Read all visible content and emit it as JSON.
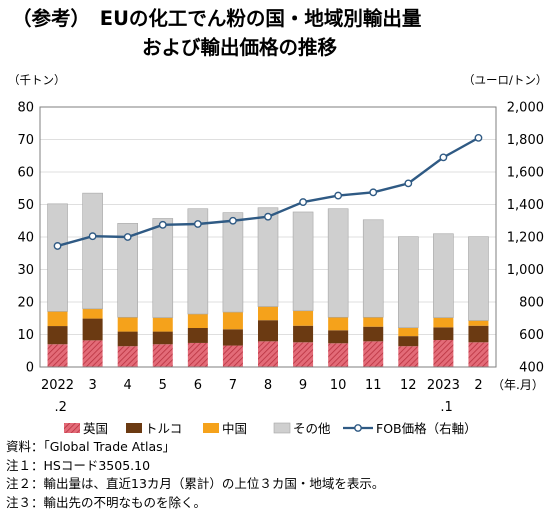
{
  "title": {
    "line1": "（参考）　EUの化工でん粉の国・地域別輸出量",
    "line2": "および輸出価格の推移"
  },
  "notes": [
    "資料：「Global Trade Atlas」",
    "注１：HSコード3505.10",
    "注２：輸出量は、直近13カ月（累計）の上位３カ国・地域を表示。",
    "注３：輸出先の不明なものを除く。"
  ],
  "chart_data": {
    "type": "bar",
    "stacked": true,
    "left_unit": "（千トン）",
    "right_unit": "（ユーロ/トン）",
    "x_unit": "（年.月）",
    "categories": [
      "2022.2",
      "3",
      "4",
      "5",
      "6",
      "7",
      "8",
      "9",
      "10",
      "11",
      "12",
      "2023.1",
      "2"
    ],
    "x_tick_labels": [
      {
        "line1": "2022",
        "line2": ".2"
      },
      {
        "line1": "3",
        "line2": ""
      },
      {
        "line1": "4",
        "line2": ""
      },
      {
        "line1": "5",
        "line2": ""
      },
      {
        "line1": "6",
        "line2": ""
      },
      {
        "line1": "7",
        "line2": ""
      },
      {
        "line1": "8",
        "line2": ""
      },
      {
        "line1": "9",
        "line2": ""
      },
      {
        "line1": "10",
        "line2": ""
      },
      {
        "line1": "11",
        "line2": ""
      },
      {
        "line1": "12",
        "line2": ""
      },
      {
        "line1": "2023",
        "line2": ".1"
      },
      {
        "line1": "2",
        "line2": ""
      }
    ],
    "y_left": {
      "min": 0,
      "max": 80,
      "step": 10
    },
    "y_right": {
      "min": 400,
      "max": 2000,
      "step": 200
    },
    "y_left_ticks": [
      "0",
      "10",
      "20",
      "30",
      "40",
      "50",
      "60",
      "70",
      "80"
    ],
    "y_right_ticks": [
      "400",
      "600",
      "800",
      "1,000",
      "1,200",
      "1,400",
      "1,600",
      "1,800",
      "2,000"
    ],
    "series": [
      {
        "name": "英国",
        "axis": "left",
        "color": "#d94c5c",
        "pattern": "hatch",
        "values": [
          7.0,
          8.2,
          6.4,
          7.0,
          7.4,
          6.6,
          7.9,
          7.6,
          7.3,
          7.9,
          6.4,
          8.3,
          7.6
        ]
      },
      {
        "name": "トルコ",
        "axis": "left",
        "color": "#6b3a12",
        "pattern": "solid",
        "values": [
          5.6,
          6.7,
          4.5,
          3.9,
          4.6,
          5.0,
          6.5,
          5.1,
          4.0,
          4.5,
          3.1,
          3.9,
          5.1
        ]
      },
      {
        "name": "中国",
        "axis": "left",
        "color": "#f5a21b",
        "pattern": "solid",
        "values": [
          4.5,
          3.0,
          4.4,
          4.3,
          4.3,
          5.3,
          4.2,
          4.6,
          4.0,
          2.9,
          2.6,
          3.0,
          1.6
        ]
      },
      {
        "name": "その他",
        "axis": "left",
        "color": "#cfcfcf",
        "pattern": "solid",
        "values": [
          33.1,
          35.6,
          28.9,
          30.5,
          32.4,
          30.6,
          30.4,
          30.4,
          33.4,
          30.0,
          28.0,
          25.8,
          25.8
        ]
      },
      {
        "name": "FOB価格（右軸）",
        "axis": "right",
        "type": "line",
        "color": "#2f5a84",
        "values": [
          1145,
          1205,
          1200,
          1275,
          1280,
          1300,
          1325,
          1415,
          1455,
          1475,
          1530,
          1690,
          1810
        ]
      }
    ],
    "legend_position": "bottom",
    "grid": false
  }
}
